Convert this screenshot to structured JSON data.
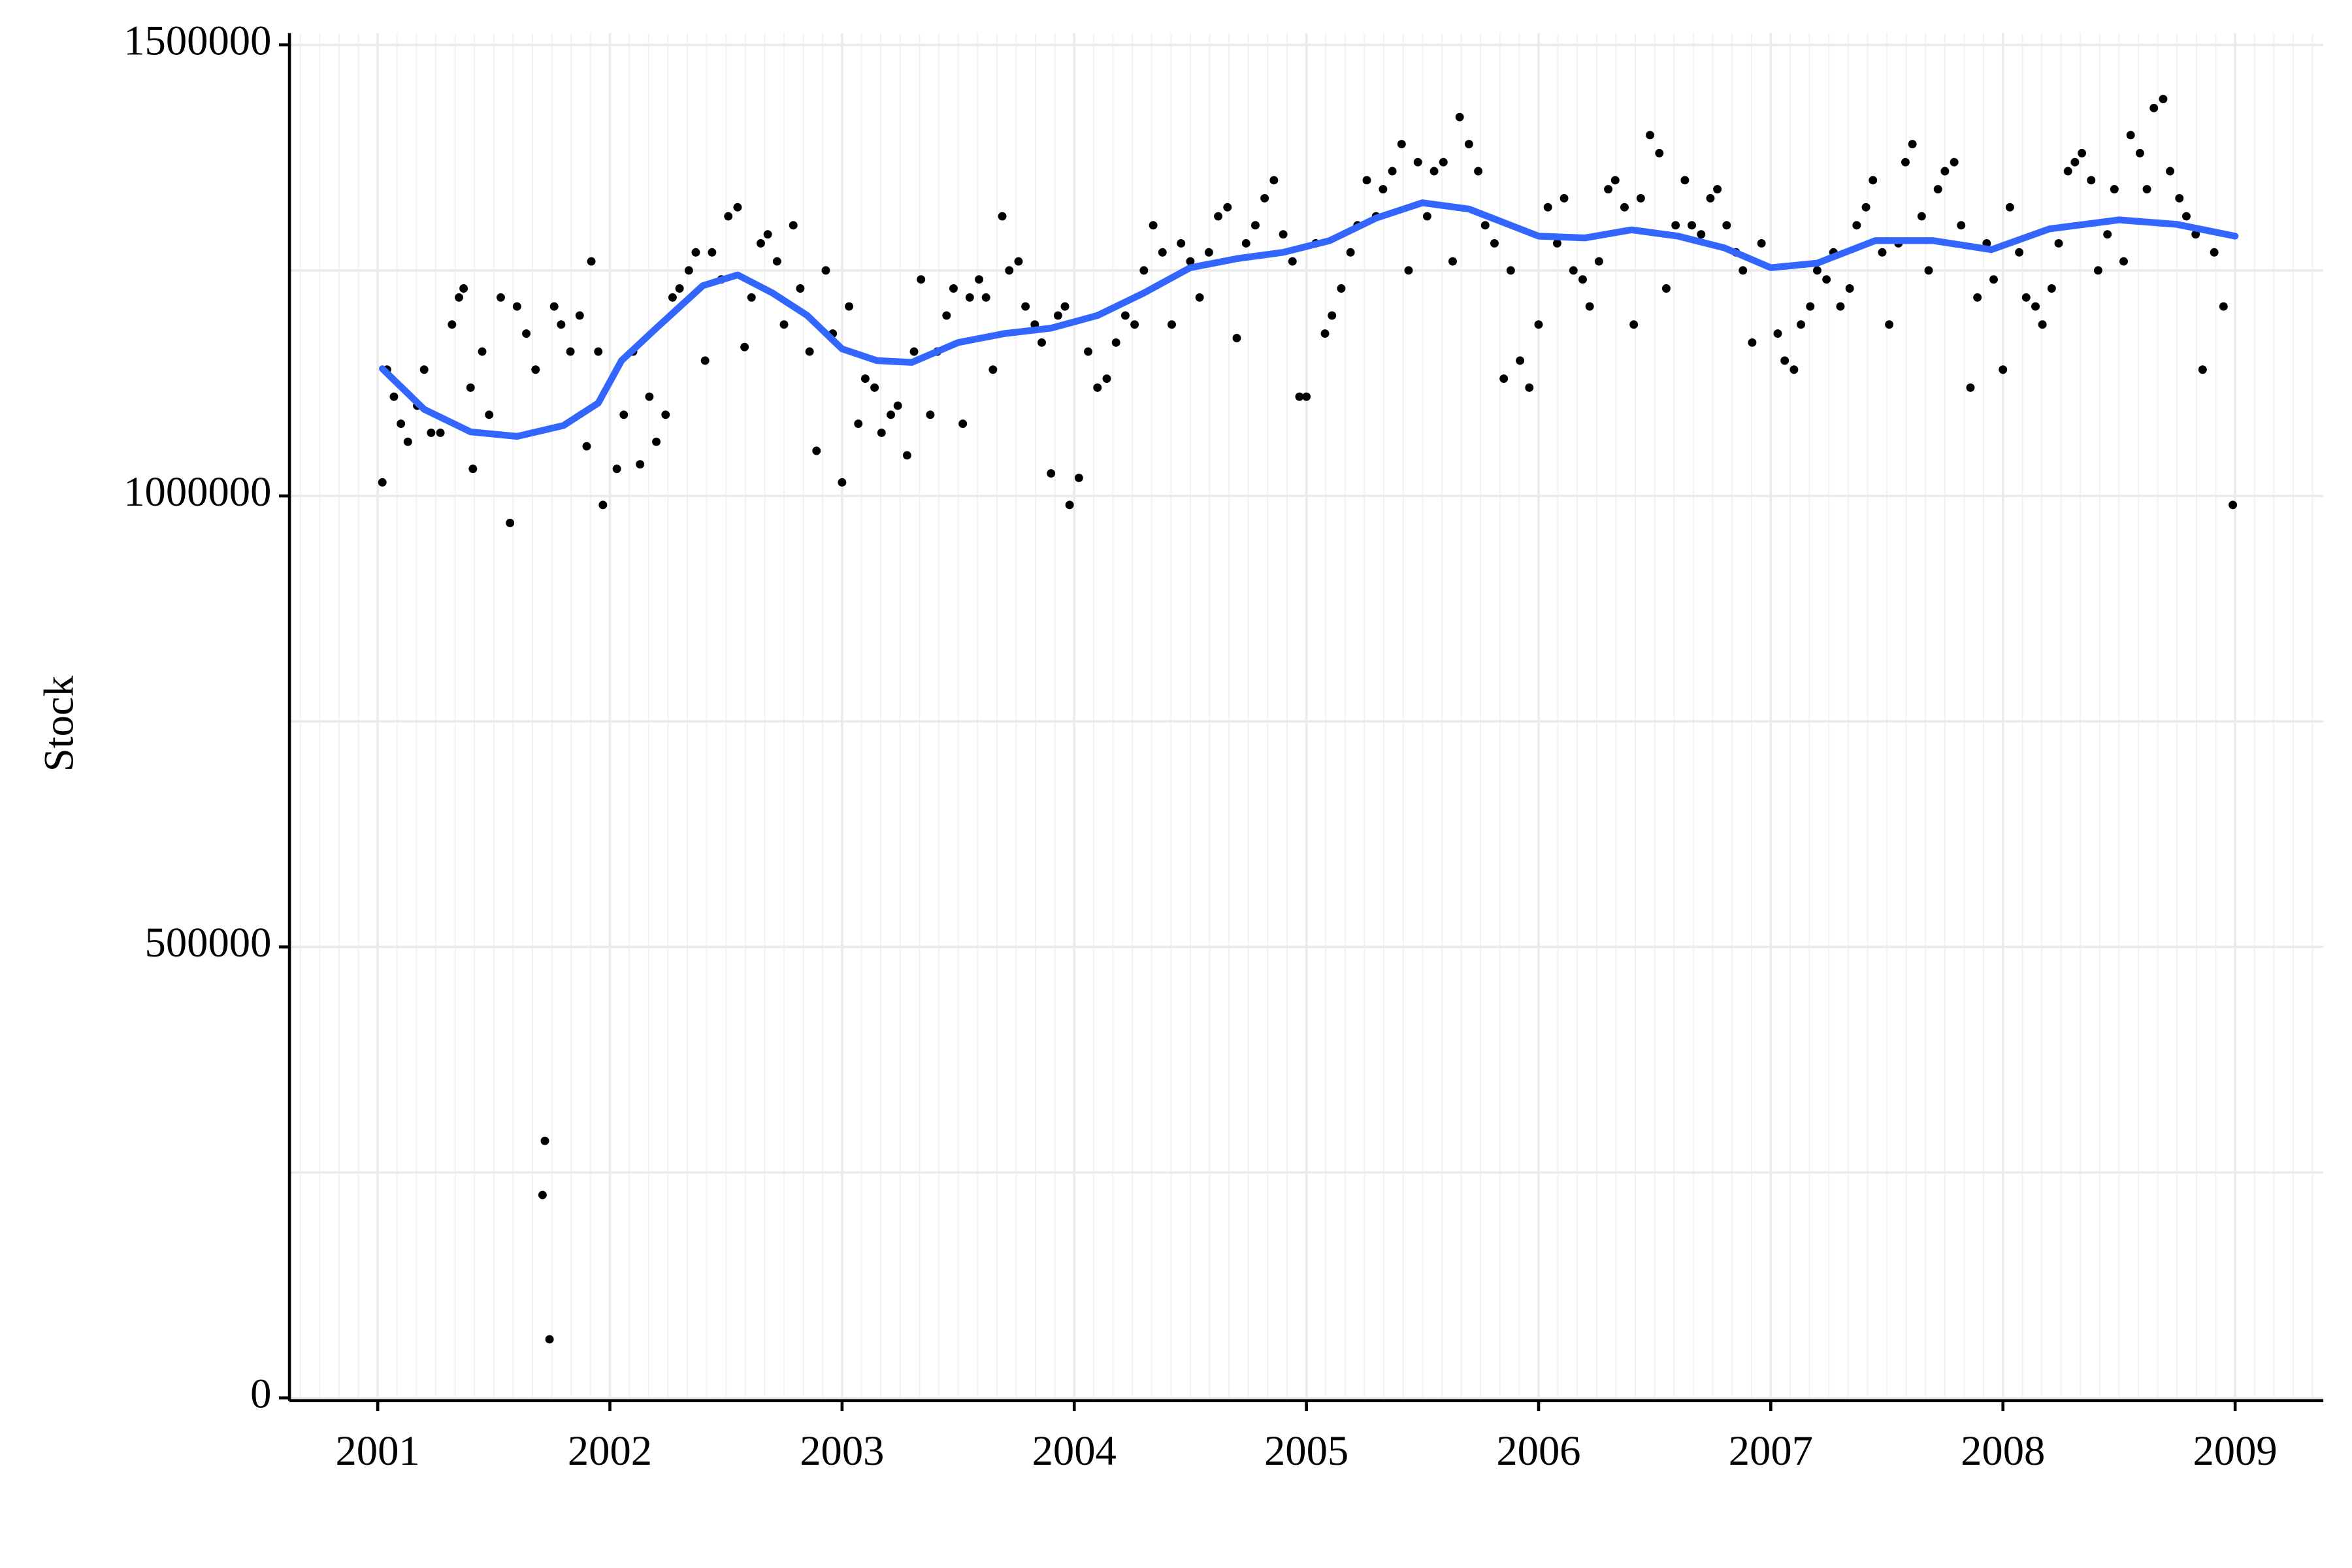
{
  "chart_data": {
    "type": "scatter",
    "y_label": "Stock",
    "xlim": [
      2000.62,
      2009.38
    ],
    "xticks": [
      2001,
      2002,
      2003,
      2004,
      2005,
      2006,
      2007,
      2008,
      2009
    ],
    "ylim": [
      -3000,
      1513000
    ],
    "yticks": [
      0,
      500000,
      1000000,
      1500000
    ],
    "minor_yticks": [
      250000,
      750000,
      1250000
    ],
    "grid": true,
    "series": [
      {
        "type": "scatter",
        "color": "#000000",
        "x": [
          2001.02,
          2001.04,
          2001.07,
          2001.1,
          2001.13,
          2001.17,
          2001.2,
          2001.23,
          2001.27,
          2001.32,
          2001.35,
          2001.37,
          2001.4,
          2001.41,
          2001.45,
          2001.48,
          2001.53,
          2001.57,
          2001.6,
          2001.64,
          2001.68,
          2001.71,
          2001.72,
          2001.74,
          2001.76,
          2001.79,
          2001.83,
          2001.87,
          2001.9,
          2001.92,
          2001.95,
          2001.97,
          2002.03,
          2002.06,
          2002.1,
          2002.13,
          2002.17,
          2002.2,
          2002.24,
          2002.27,
          2002.3,
          2002.34,
          2002.37,
          2002.41,
          2002.44,
          2002.48,
          2002.51,
          2002.55,
          2002.58,
          2002.61,
          2002.65,
          2002.68,
          2002.72,
          2002.75,
          2002.79,
          2002.82,
          2002.86,
          2002.89,
          2002.93,
          2002.96,
          2003.0,
          2003.03,
          2003.07,
          2003.1,
          2003.14,
          2003.17,
          2003.21,
          2003.24,
          2003.28,
          2003.31,
          2003.34,
          2003.38,
          2003.41,
          2003.45,
          2003.48,
          2003.52,
          2003.55,
          2003.59,
          2003.62,
          2003.65,
          2003.69,
          2003.72,
          2003.76,
          2003.79,
          2003.83,
          2003.86,
          2003.9,
          2003.93,
          2003.96,
          2003.98,
          2004.02,
          2004.06,
          2004.1,
          2004.14,
          2004.18,
          2004.22,
          2004.26,
          2004.3,
          2004.34,
          2004.38,
          2004.42,
          2004.46,
          2004.5,
          2004.54,
          2004.58,
          2004.62,
          2004.66,
          2004.7,
          2004.74,
          2004.78,
          2004.82,
          2004.86,
          2004.9,
          2004.94,
          2004.97,
          2005.0,
          2005.04,
          2005.08,
          2005.11,
          2005.15,
          2005.19,
          2005.22,
          2005.26,
          2005.3,
          2005.33,
          2005.37,
          2005.41,
          2005.44,
          2005.48,
          2005.52,
          2005.55,
          2005.59,
          2005.63,
          2005.66,
          2005.7,
          2005.74,
          2005.77,
          2005.81,
          2005.85,
          2005.88,
          2005.92,
          2005.96,
          2006.0,
          2006.04,
          2006.08,
          2006.11,
          2006.15,
          2006.19,
          2006.22,
          2006.26,
          2006.3,
          2006.33,
          2006.37,
          2006.41,
          2006.44,
          2006.48,
          2006.52,
          2006.55,
          2006.59,
          2006.63,
          2006.66,
          2006.7,
          2006.74,
          2006.77,
          2006.81,
          2006.85,
          2006.88,
          2006.92,
          2006.96,
          2007.03,
          2007.06,
          2007.1,
          2007.13,
          2007.17,
          2007.2,
          2007.24,
          2007.27,
          2007.3,
          2007.34,
          2007.37,
          2007.41,
          2007.44,
          2007.48,
          2007.51,
          2007.55,
          2007.58,
          2007.61,
          2007.65,
          2007.68,
          2007.72,
          2007.75,
          2007.79,
          2007.82,
          2007.86,
          2007.89,
          2007.93,
          2007.96,
          2008.0,
          2008.03,
          2008.07,
          2008.1,
          2008.14,
          2008.17,
          2008.21,
          2008.24,
          2008.28,
          2008.31,
          2008.34,
          2008.38,
          2008.41,
          2008.45,
          2008.48,
          2008.52,
          2008.55,
          2008.59,
          2008.62,
          2008.65,
          2008.69,
          2008.72,
          2008.76,
          2008.79,
          2008.83,
          2008.86,
          2008.91,
          2008.95,
          2008.99
        ],
        "values": [
          1015000,
          1140000,
          1110000,
          1080000,
          1060000,
          1100000,
          1140000,
          1070000,
          1070000,
          1190000,
          1220000,
          1230000,
          1120000,
          1030000,
          1160000,
          1090000,
          1220000,
          970000,
          1210000,
          1180000,
          1140000,
          225000,
          285000,
          65000,
          1210000,
          1190000,
          1160000,
          1200000,
          1055000,
          1260000,
          1160000,
          990000,
          1030000,
          1090000,
          1160000,
          1035000,
          1110000,
          1060000,
          1090000,
          1220000,
          1230000,
          1250000,
          1270000,
          1150000,
          1270000,
          1240000,
          1310000,
          1320000,
          1165000,
          1220000,
          1280000,
          1290000,
          1260000,
          1190000,
          1300000,
          1230000,
          1160000,
          1050000,
          1250000,
          1180000,
          1015000,
          1210000,
          1080000,
          1130000,
          1120000,
          1070000,
          1090000,
          1100000,
          1045000,
          1160000,
          1240000,
          1090000,
          1160000,
          1200000,
          1230000,
          1080000,
          1220000,
          1240000,
          1220000,
          1140000,
          1310000,
          1250000,
          1260000,
          1210000,
          1190000,
          1170000,
          1025000,
          1200000,
          1210000,
          990000,
          1020000,
          1160000,
          1120000,
          1130000,
          1170000,
          1200000,
          1190000,
          1250000,
          1300000,
          1270000,
          1190000,
          1280000,
          1260000,
          1220000,
          1270000,
          1310000,
          1320000,
          1175000,
          1280000,
          1300000,
          1330000,
          1350000,
          1290000,
          1260000,
          1110000,
          1110000,
          1280000,
          1180000,
          1200000,
          1230000,
          1270000,
          1300000,
          1350000,
          1310000,
          1340000,
          1360000,
          1390000,
          1250000,
          1370000,
          1310000,
          1360000,
          1370000,
          1260000,
          1420000,
          1390000,
          1360000,
          1300000,
          1280000,
          1130000,
          1250000,
          1150000,
          1120000,
          1190000,
          1320000,
          1280000,
          1330000,
          1250000,
          1240000,
          1210000,
          1260000,
          1340000,
          1350000,
          1320000,
          1190000,
          1330000,
          1400000,
          1380000,
          1230000,
          1300000,
          1350000,
          1300000,
          1290000,
          1330000,
          1340000,
          1300000,
          1270000,
          1250000,
          1170000,
          1280000,
          1180000,
          1150000,
          1140000,
          1190000,
          1210000,
          1250000,
          1240000,
          1270000,
          1210000,
          1230000,
          1300000,
          1320000,
          1350000,
          1270000,
          1190000,
          1280000,
          1370000,
          1390000,
          1310000,
          1250000,
          1340000,
          1360000,
          1370000,
          1300000,
          1120000,
          1220000,
          1280000,
          1240000,
          1140000,
          1320000,
          1270000,
          1220000,
          1210000,
          1190000,
          1230000,
          1280000,
          1360000,
          1370000,
          1380000,
          1350000,
          1250000,
          1290000,
          1340000,
          1260000,
          1400000,
          1380000,
          1340000,
          1430000,
          1440000,
          1360000,
          1330000,
          1310000,
          1290000,
          1140000,
          1270000,
          1210000,
          990000
        ]
      },
      {
        "type": "line",
        "color": "#3366ff",
        "x": [
          2001.02,
          2001.2,
          2001.4,
          2001.6,
          2001.8,
          2001.95,
          2002.05,
          2002.2,
          2002.4,
          2002.55,
          2002.7,
          2002.85,
          2003.0,
          2003.15,
          2003.3,
          2003.5,
          2003.7,
          2003.9,
          2004.1,
          2004.3,
          2004.5,
          2004.7,
          2004.9,
          2005.1,
          2005.3,
          2005.5,
          2005.7,
          2005.85,
          2006.0,
          2006.2,
          2006.4,
          2006.6,
          2006.8,
          2007.0,
          2007.2,
          2007.45,
          2007.7,
          2007.95,
          2008.2,
          2008.5,
          2008.75,
          2009.0
        ],
        "values": [
          1141000,
          1096000,
          1071000,
          1066000,
          1078000,
          1103000,
          1150000,
          1186000,
          1233000,
          1245000,
          1225000,
          1200000,
          1163000,
          1150000,
          1148000,
          1170000,
          1180000,
          1186000,
          1200000,
          1225000,
          1253000,
          1263000,
          1270000,
          1283000,
          1308000,
          1325000,
          1318000,
          1303000,
          1288000,
          1286000,
          1295000,
          1288000,
          1275000,
          1253000,
          1258000,
          1283000,
          1283000,
          1273000,
          1296000,
          1306000,
          1301000,
          1288000
        ]
      }
    ]
  }
}
